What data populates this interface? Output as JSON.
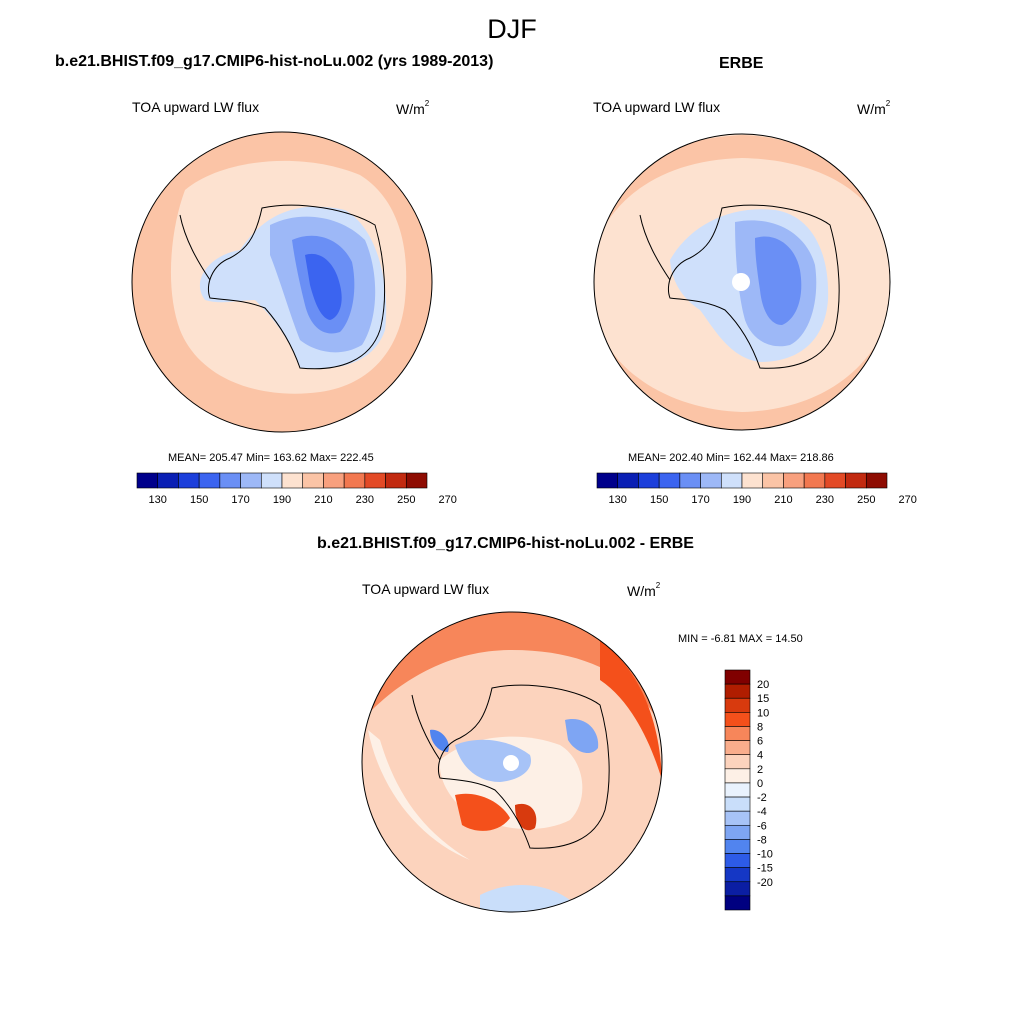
{
  "season": "DJF",
  "panels": {
    "model": {
      "title": "b.e21.BHIST.f09_g17.CMIP6-hist-noLu.002 (yrs 1989-2013)",
      "variable": "TOA upward LW flux",
      "units_base": "W/m",
      "units_exp": "2",
      "stats": "MEAN= 205.47  Min= 163.62  Max= 222.45"
    },
    "obs": {
      "title": "ERBE",
      "variable": "TOA upward LW flux",
      "units_base": "W/m",
      "units_exp": "2",
      "stats": "MEAN= 202.40  Min= 162.44  Max= 218.86"
    },
    "diff": {
      "title": "b.e21.BHIST.f09_g17.CMIP6-hist-noLu.002 - ERBE",
      "variable": "TOA upward LW flux",
      "units_base": "W/m",
      "units_exp": "2",
      "stats": "MIN =  -6.81 MAX =  14.50"
    }
  },
  "colors": {
    "abs_scale": [
      "#00008b",
      "#0a1fb4",
      "#1c3fdb",
      "#3b64f0",
      "#6a8ff5",
      "#9db8f7",
      "#cfe0fb",
      "#fde2d0",
      "#fbc4a6",
      "#f8a07e",
      "#f27850",
      "#e34a26",
      "#c22a10",
      "#8e0c02"
    ],
    "diff_scale": [
      "#800000",
      "#b01d00",
      "#d83a0e",
      "#f4501b",
      "#f7865a",
      "#f9ad8c",
      "#fcd3bd",
      "#fdf0e6",
      "#e9f2fd",
      "#c9defa",
      "#a7c3f7",
      "#7ea5f3",
      "#5184ef",
      "#2d5be7",
      "#1537c5",
      "#0b1ea3",
      "#000080"
    ],
    "continent_outline": "#000000"
  },
  "chart_data": [
    {
      "type": "heatmap",
      "map": "south-polar-stereographic",
      "title": "b.e21.BHIST.f09_g17.CMIP6-hist-noLu.002 (yrs 1989-2013)",
      "variable": "TOA upward LW flux",
      "units": "W/m2",
      "mean": 205.47,
      "min": 163.62,
      "max": 222.45,
      "colorbar_labels": [
        130,
        150,
        170,
        190,
        210,
        230,
        250,
        270
      ]
    },
    {
      "type": "heatmap",
      "map": "south-polar-stereographic",
      "title": "ERBE",
      "variable": "TOA upward LW flux",
      "units": "W/m2",
      "mean": 202.4,
      "min": 162.44,
      "max": 218.86,
      "colorbar_labels": [
        130,
        150,
        170,
        190,
        210,
        230,
        250,
        270
      ]
    },
    {
      "type": "heatmap",
      "map": "south-polar-stereographic",
      "title": "b.e21.BHIST.f09_g17.CMIP6-hist-noLu.002 - ERBE",
      "variable": "TOA upward LW flux",
      "units": "W/m2",
      "min": -6.81,
      "max": 14.5,
      "colorbar_labels": [
        20,
        15,
        10,
        8,
        6,
        4,
        2,
        0,
        -2,
        -4,
        -6,
        -8,
        -10,
        -15,
        -20
      ]
    }
  ]
}
